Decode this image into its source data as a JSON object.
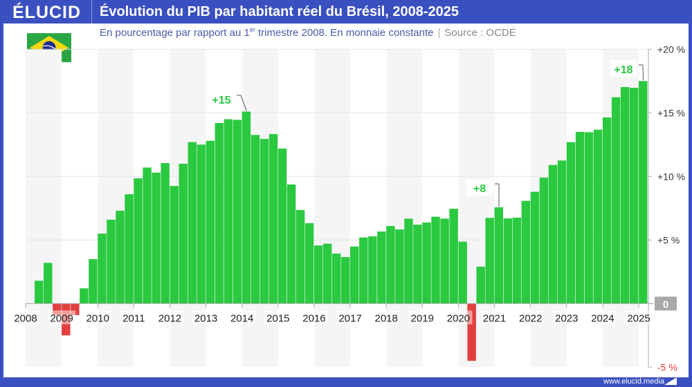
{
  "header": {
    "logo": "ÉLUCID",
    "title": "Évolution du PIB par habitant réel du Brésil, 2008-2025"
  },
  "subtitle": {
    "text_before": "En pourcentage par rapport au 1",
    "superscript": "er",
    "text_after": " trimestre 2008. En monnaie constante",
    "source": "Source : OCDE"
  },
  "flag": "brazil-flag",
  "footer": {
    "url": "www.elucid.media"
  },
  "colors": {
    "positive": "#2ac940",
    "negative": "#e2403f",
    "brand": "#3a50c0",
    "zero_label_bg": "#a9a9a9"
  },
  "chart_data": {
    "type": "bar",
    "title": "Évolution du PIB par habitant réel du Brésil, 2008-2025",
    "ylabel": "",
    "xlabel": "",
    "ylim": [
      -5,
      20
    ],
    "y_ticks": [
      {
        "value": 20,
        "label": "+20 %"
      },
      {
        "value": 15,
        "label": "+15 %"
      },
      {
        "value": 10,
        "label": "+10 %"
      },
      {
        "value": 5,
        "label": "+5 %"
      },
      {
        "value": 0,
        "label": "0"
      },
      {
        "value": -5,
        "label": "-5 %"
      }
    ],
    "x_tick_labels": [
      "2008",
      "2009",
      "2010",
      "2011",
      "2012",
      "2013",
      "2014",
      "2015",
      "2016",
      "2017",
      "2018",
      "2019",
      "2020",
      "2021",
      "2022",
      "2023",
      "2024",
      "2025"
    ],
    "grid": true,
    "y_axis_position": "right",
    "start": "2008 Q1",
    "frequency": "quarterly",
    "values": [
      0,
      1.8,
      3.2,
      -0.9,
      -2.5,
      -0.9,
      1.2,
      3.5,
      5.5,
      6.6,
      7.3,
      8.6,
      9.85,
      10.7,
      10.3,
      11.05,
      9.25,
      11.0,
      12.7,
      12.5,
      12.8,
      14.2,
      14.5,
      14.45,
      15.1,
      13.26,
      12.95,
      13.33,
      12.19,
      9.37,
      7.36,
      6.32,
      4.57,
      4.71,
      3.93,
      3.66,
      4.49,
      5.2,
      5.29,
      5.67,
      6.1,
      5.83,
      6.68,
      6.21,
      6.38,
      6.83,
      6.68,
      7.46,
      4.87,
      -4.5,
      2.9,
      6.74,
      7.57,
      6.7,
      6.76,
      8.08,
      8.79,
      9.91,
      10.9,
      11.25,
      12.7,
      13.5,
      13.48,
      13.68,
      14.64,
      16.23,
      17.03,
      16.97,
      17.5
    ],
    "annotations": [
      {
        "label": "+15",
        "period": "2014 Q1"
      },
      {
        "label": "+8",
        "period": "2021 Q1"
      },
      {
        "label": "+18",
        "period": "2025 Q1"
      }
    ]
  }
}
